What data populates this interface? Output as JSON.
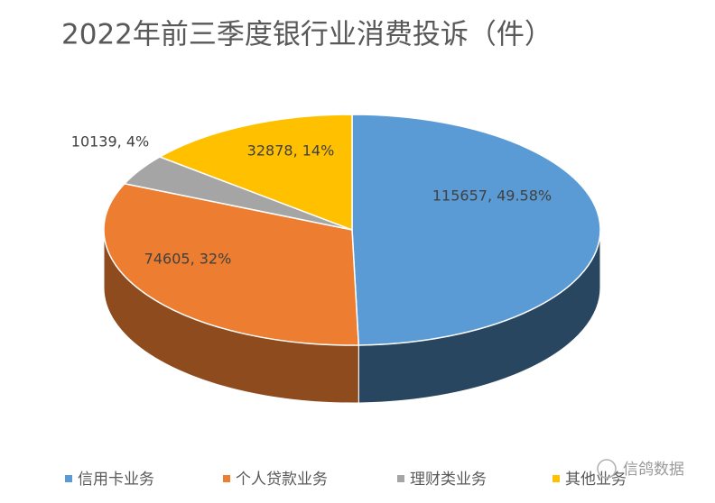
{
  "chart_data": {
    "type": "pie3d",
    "title": "2022年前三季度银行业消费投诉（件）",
    "categories": [
      "信用卡业务",
      "个人贷款业务",
      "理财类业务",
      "其他业务"
    ],
    "values": [
      115657,
      74605,
      10139,
      32878
    ],
    "value_labels": [
      "115657, 49.58%",
      "74605, 32%",
      "10139, 4%",
      "32878, 14%"
    ],
    "colors": [
      "#5b9bd5",
      "#ed7d31",
      "#a5a5a5",
      "#ffc000"
    ],
    "legend": "bottom",
    "watermark": "信鸽数据"
  }
}
